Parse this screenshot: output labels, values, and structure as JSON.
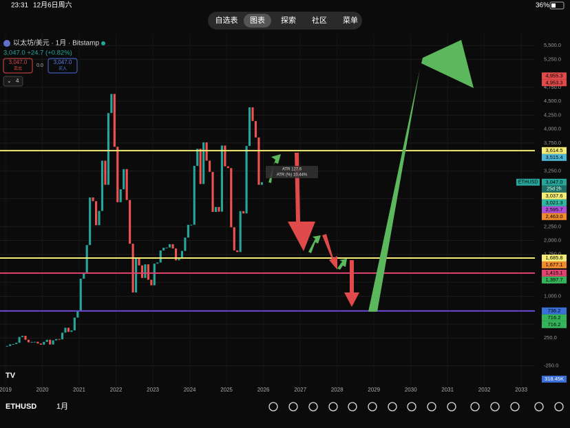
{
  "status_bar": {
    "time": "23:31",
    "date": "12月6日周六",
    "battery": "36%"
  },
  "tabs": [
    "自选表",
    "图表",
    "探索",
    "社区",
    "菜单"
  ],
  "active_tab": 1,
  "symbol": {
    "title": "以太坊/美元 · 1月 · Bitstamp",
    "quote": "3,047.0 +24.7 (+0.82%)",
    "sell_price": "3,047.0",
    "sell_label": "卖出",
    "spread": "0.0",
    "buy_price": "3,047.0",
    "buy_label": "买入",
    "indicator_count": "4"
  },
  "chart": {
    "type": "candlestick",
    "first_month": "2019-01",
    "closes": [
      107,
      136,
      141,
      163,
      268,
      290,
      218,
      172,
      180,
      182,
      151,
      130,
      180,
      218,
      133,
      207,
      231,
      225,
      346,
      434,
      360,
      386,
      616,
      737,
      1314,
      1416,
      1918,
      2773,
      2706,
      2275,
      2531,
      3433,
      3000,
      4288,
      4631,
      3683,
      2688,
      2920,
      3282,
      2727,
      1942,
      1067,
      1679,
      1553,
      1328,
      1572,
      1295,
      1196,
      1584,
      1605,
      1821,
      1870,
      1874,
      1934,
      1857,
      1645,
      1671,
      1813,
      2052,
      2281,
      2283,
      3340,
      3647,
      3014,
      3762,
      3433,
      3232,
      2513,
      2602,
      2518,
      3705,
      3332,
      3300,
      2237,
      1822,
      1793,
      2528,
      2486,
      3697,
      4390,
      4145,
      3850,
      3000,
      3047
    ],
    "up_color": "#26a69a",
    "down_color": "#ef5350",
    "xlim": [
      2018.85,
      2033.37
    ],
    "xticks": [
      2019,
      2020,
      2021,
      2022,
      2023,
      2024,
      2025,
      2026,
      2027,
      2028,
      2029,
      2030,
      2031,
      2032,
      2033
    ],
    "ylim": [
      -600,
      5700
    ],
    "yticks": [
      {
        "value": 5500,
        "label": "5,500.0"
      },
      {
        "value": 5250,
        "label": "5,250.0"
      },
      {
        "value": 4750,
        "label": "4,750.0"
      },
      {
        "value": 4500,
        "label": "4,500.0"
      },
      {
        "value": 4250,
        "label": "4,250.0"
      },
      {
        "value": 4000,
        "label": "4,000.0"
      },
      {
        "value": 3750,
        "label": "3,750.0"
      },
      {
        "value": 3250,
        "label": "3,250.0"
      },
      {
        "value": 2750,
        "label": "2,750.0"
      },
      {
        "value": 2250,
        "label": "2,250.0"
      },
      {
        "value": 2000,
        "label": "2,000.0"
      },
      {
        "value": 1750,
        "label": "1,750.0"
      },
      {
        "value": 1250,
        "label": "1,250.0"
      },
      {
        "value": 1000,
        "label": "1,000.0"
      },
      {
        "value": 500,
        "label": "500.0"
      },
      {
        "value": 250,
        "label": "250.0"
      },
      {
        "value": -250,
        "label": "-250.0"
      }
    ],
    "levels": [
      {
        "value": 3614.5,
        "color": "#f4ec74"
      },
      {
        "value": 1685.8,
        "color": "#f4ec74"
      },
      {
        "value": 1415.1,
        "color": "#e0436e"
      },
      {
        "value": 736.2,
        "color": "#6a4bd8"
      }
    ],
    "price_tags": [
      {
        "value": 4955.3,
        "label": "4,955.3",
        "color": "#e04a4a"
      },
      {
        "value": 4953.3,
        "label": "4,953.3",
        "color": "#e04a4a"
      },
      {
        "value": 3614.5,
        "label": "3,614.5",
        "color": "#f4ec74"
      },
      {
        "value": 3515.4,
        "label": "3,515.4",
        "color": "#4fb6d6"
      },
      {
        "value": 3047,
        "label": "3,047.0",
        "color": "#26a69a"
      },
      {
        "value": 3037.6,
        "label": "3,037.6",
        "color": "#f4ec74"
      },
      {
        "value": 3021.3,
        "label": "3,021.3",
        "color": "#2fb8a0"
      },
      {
        "value": 2595.7,
        "label": "2,595.7",
        "color": "#b04fd8"
      },
      {
        "value": 2463,
        "label": "2,463.0",
        "color": "#f08a2c"
      },
      {
        "value": 1685.8,
        "label": "1,685.8",
        "color": "#f4ec74"
      },
      {
        "value": 1677.1,
        "label": "1,677.1",
        "color": "#f08a2c"
      },
      {
        "value": 1415.1,
        "label": "1,415.1",
        "color": "#e0436e"
      },
      {
        "value": 1397.7,
        "label": "1,397.7",
        "color": "#35b35a"
      },
      {
        "value": 736.2,
        "label": "736.2",
        "color": "#3a6fd8"
      },
      {
        "value": 716.2,
        "label": "716.2",
        "color": "#35b35a"
      },
      {
        "value": 716.2,
        "label": "716.2",
        "color": "#35b35a"
      }
    ],
    "last_symbol": "ETHUSD",
    "countdown": "25d 2h",
    "volume_label": "318.45K",
    "annotations": [
      "ATR 127.6",
      "ATR (%) 10.44%"
    ]
  },
  "bottom_bar": {
    "symbol": "ETHUSD",
    "interval": "1月"
  }
}
